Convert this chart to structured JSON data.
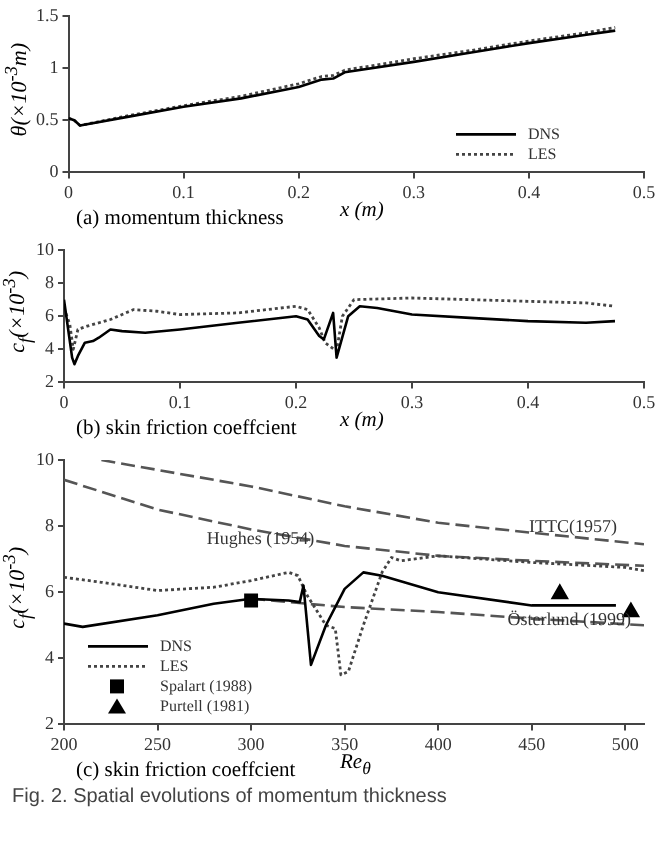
{
  "chart_data": [
    {
      "type": "line",
      "title": "(a) momentum thickness",
      "xlabel": "x (m)",
      "ylabel": "θ(×10$^{-3}$m)",
      "xlim": [
        0,
        0.5
      ],
      "xticks": [
        0,
        0.1,
        0.2,
        0.3,
        0.4,
        0.5
      ],
      "ylim": [
        0,
        1.5
      ],
      "yticks": [
        0,
        0.5,
        1,
        1.5
      ],
      "grid": false,
      "legend": "bottom right",
      "series": [
        {
          "name": "DNS",
          "color": "#000000",
          "line_style": "solid",
          "x": [
            0,
            0.005,
            0.01,
            0.05,
            0.1,
            0.15,
            0.2,
            0.22,
            0.23,
            0.24,
            0.3,
            0.35,
            0.4,
            0.45,
            0.475
          ],
          "values": [
            0.52,
            0.5,
            0.45,
            0.53,
            0.63,
            0.71,
            0.82,
            0.89,
            0.9,
            0.96,
            1.06,
            1.15,
            1.24,
            1.32,
            1.36
          ]
        },
        {
          "name": "LES",
          "color": "#444444",
          "line_style": "dotted",
          "x": [
            0,
            0.005,
            0.01,
            0.05,
            0.1,
            0.15,
            0.2,
            0.22,
            0.23,
            0.24,
            0.3,
            0.35,
            0.4,
            0.45,
            0.475
          ],
          "values": [
            0.52,
            0.5,
            0.45,
            0.54,
            0.64,
            0.73,
            0.85,
            0.92,
            0.93,
            0.98,
            1.09,
            1.17,
            1.26,
            1.34,
            1.39
          ]
        }
      ]
    },
    {
      "type": "line",
      "title": "(b) skin friction coeffcient",
      "xlabel": "x (m)",
      "ylabel": "c$_{f}$(×10$^{-3}$)",
      "xlim": [
        0,
        0.5
      ],
      "xticks": [
        0,
        0.1,
        0.2,
        0.3,
        0.4,
        0.5
      ],
      "ylim": [
        2,
        10
      ],
      "yticks": [
        2,
        4,
        6,
        8,
        10
      ],
      "grid": false,
      "series": [
        {
          "color": "#000000",
          "line_style": "solid",
          "x": [
            0,
            0.003,
            0.007,
            0.009,
            0.012,
            0.018,
            0.025,
            0.03,
            0.04,
            0.05,
            0.07,
            0.1,
            0.15,
            0.2,
            0.21,
            0.22,
            0.224,
            0.232,
            0.235,
            0.245,
            0.255,
            0.27,
            0.3,
            0.35,
            0.4,
            0.45,
            0.475
          ],
          "values": [
            7.0,
            5.5,
            3.5,
            3.1,
            3.6,
            4.4,
            4.5,
            4.7,
            5.2,
            5.1,
            5.0,
            5.2,
            5.6,
            6.0,
            5.8,
            4.8,
            4.6,
            6.2,
            3.5,
            6.0,
            6.6,
            6.5,
            6.1,
            5.9,
            5.7,
            5.6,
            5.7
          ]
        },
        {
          "color": "#444444",
          "line_style": "dotted",
          "x": [
            0,
            0.005,
            0.008,
            0.012,
            0.02,
            0.04,
            0.06,
            0.08,
            0.1,
            0.15,
            0.2,
            0.21,
            0.22,
            0.225,
            0.235,
            0.24,
            0.25,
            0.3,
            0.35,
            0.4,
            0.45,
            0.475
          ],
          "values": [
            6.5,
            5.5,
            4.0,
            5.2,
            5.4,
            5.8,
            6.4,
            6.3,
            6.1,
            6.2,
            6.6,
            6.4,
            5.3,
            4.4,
            3.9,
            6.0,
            7.0,
            7.1,
            7.0,
            6.9,
            6.8,
            6.6
          ]
        }
      ]
    },
    {
      "type": "line",
      "title": "(c) skin friction coeffcient",
      "xlabel": "Re$_{θ}$",
      "ylabel": "c$_{f}$(×10$^{-3}$)",
      "xlim": [
        200,
        510
      ],
      "xticks": [
        200,
        250,
        300,
        350,
        400,
        450,
        500
      ],
      "ylim": [
        2,
        10
      ],
      "yticks": [
        2,
        4,
        6,
        8,
        10
      ],
      "grid": false,
      "legend": "bottom left",
      "series": [
        {
          "name": "DNS",
          "color": "#000000",
          "line_style": "solid",
          "x": [
            200,
            210,
            250,
            280,
            300,
            320,
            326,
            328,
            332,
            340,
            350,
            360,
            370,
            400,
            450,
            495
          ],
          "values": [
            5.05,
            4.95,
            5.3,
            5.65,
            5.8,
            5.75,
            5.7,
            6.2,
            3.8,
            5.0,
            6.1,
            6.6,
            6.5,
            6.0,
            5.6,
            5.6
          ]
        },
        {
          "name": "LES",
          "color": "#444444",
          "line_style": "dotted",
          "x": [
            200,
            220,
            250,
            280,
            300,
            320,
            325,
            330,
            340,
            345,
            348,
            352,
            360,
            370,
            375,
            380,
            400,
            450,
            500,
            510
          ],
          "values": [
            6.45,
            6.3,
            6.05,
            6.15,
            6.35,
            6.6,
            6.5,
            5.9,
            5.0,
            4.9,
            3.5,
            3.6,
            5.0,
            6.6,
            7.05,
            6.95,
            7.1,
            6.9,
            6.75,
            6.65
          ]
        },
        {
          "name": "Spalart (1988)",
          "type": "scatter",
          "color": "#000000",
          "marker": "square",
          "x": [
            300
          ],
          "values": [
            5.75
          ]
        },
        {
          "name": "Purtell (1981)",
          "type": "scatter",
          "color": "#000000",
          "marker": "triangle",
          "x": [
            465,
            503
          ],
          "values": [
            5.95,
            5.4
          ]
        },
        {
          "color": "#555555",
          "line_style": "dashed",
          "x": [
            200,
            250,
            300,
            350,
            400,
            450,
            510
          ],
          "values": [
            9.4,
            8.5,
            7.9,
            7.4,
            7.1,
            6.95,
            6.8
          ]
        },
        {
          "color": "#555555",
          "line_style": "dashed",
          "x": [
            220,
            300,
            350,
            400,
            450,
            510
          ],
          "values": [
            10.0,
            9.2,
            8.6,
            8.1,
            7.8,
            7.45
          ]
        },
        {
          "color": "#555555",
          "line_style": "dashed",
          "x": [
            300,
            350,
            400,
            450,
            510
          ],
          "values": [
            5.8,
            5.55,
            5.4,
            5.2,
            5.0
          ]
        }
      ],
      "annotations": [
        {
          "text": "Hughes (1954)",
          "x": 305,
          "y": 7.6
        },
        {
          "text": "ITTC(1957)",
          "x": 472,
          "y": 7.95
        },
        {
          "text": "Österlund (1999)",
          "x": 470,
          "y": 5.15
        },
        "Fig. 2. Spatial evolutions of momentum thickness"
      ]
    }
  ]
}
